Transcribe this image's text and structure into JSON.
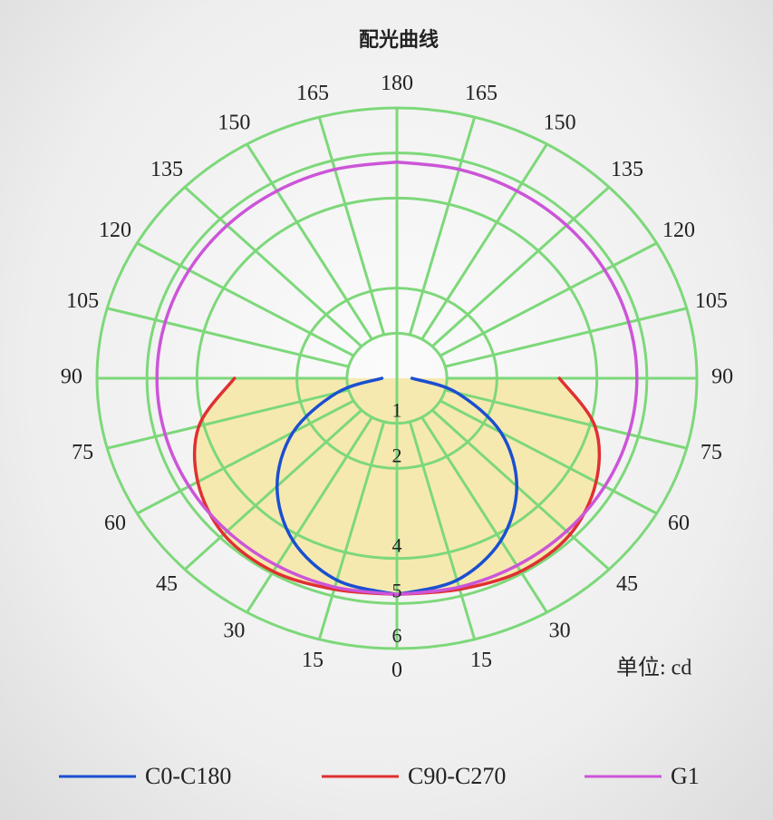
{
  "chart_data": {
    "type": "polar",
    "title": "配光曲线",
    "unit_label": "单位: cd",
    "angles": [
      0,
      15,
      30,
      45,
      60,
      75,
      90,
      105,
      120,
      135,
      150,
      165,
      180
    ],
    "angle_ticks": [
      0,
      15,
      30,
      45,
      60,
      75,
      90,
      105,
      120,
      135,
      150,
      165,
      180
    ],
    "rlim": [
      0,
      6
    ],
    "rticks": [
      1,
      2,
      4,
      5,
      6
    ],
    "grid": true,
    "grid_color": "#7dd87a",
    "fill_color": "#f6e9b0",
    "series": [
      {
        "name": "C0-C180",
        "color": "#1a4fd0",
        "values": [
          4.8,
          4.64,
          4.16,
          3.39,
          2.4,
          1.24,
          0.3,
          null,
          null,
          null,
          null,
          null,
          null
        ]
      },
      {
        "name": "C90-C270",
        "color": "#e03030",
        "fill": true,
        "values": [
          4.8,
          4.85,
          4.95,
          4.9,
          4.6,
          4.1,
          3.25,
          null,
          null,
          null,
          null,
          null,
          null
        ]
      },
      {
        "name": "G1",
        "color": "#cc55d8",
        "values": [
          4.8,
          4.8,
          4.8,
          4.8,
          4.8,
          4.8,
          4.8,
          4.8,
          4.8,
          4.8,
          4.8,
          4.8,
          4.8
        ]
      }
    ]
  }
}
